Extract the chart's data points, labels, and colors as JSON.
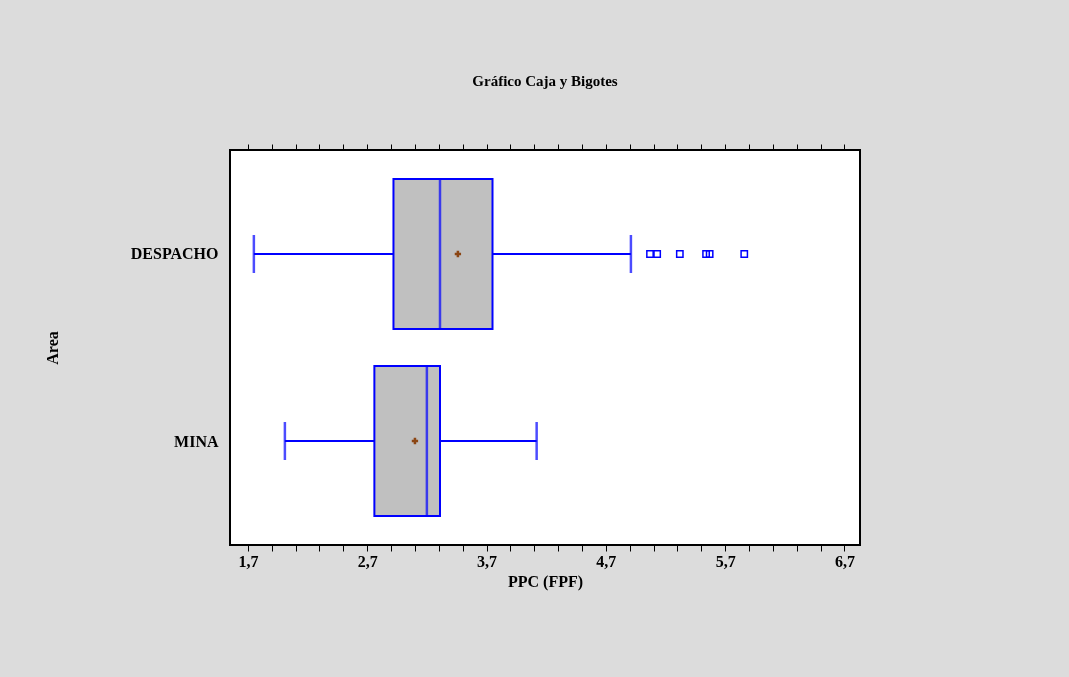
{
  "chart_data": {
    "type": "box",
    "title": "Gráfico Caja y Bigotes",
    "xlabel": "PPC (FPF)",
    "ylabel": "Area",
    "orientation": "horizontal",
    "categories": [
      "DESPACHO",
      "MINA"
    ],
    "series": [
      {
        "color": "#0000ff",
        "boxes": [
          {
            "low": 1.75,
            "q1": 2.92,
            "median": 3.31,
            "q3": 3.75,
            "high": 4.91,
            "mean": 3.46,
            "outliers": [
              5.07,
              5.13,
              5.32,
              5.54,
              5.57,
              5.86
            ]
          },
          {
            "low": 2.01,
            "q1": 2.76,
            "median": 3.2,
            "q3": 3.31,
            "high": 4.12,
            "mean": 3.1
          }
        ]
      }
    ],
    "xlim": [
      1.55,
      6.83
    ],
    "xticks": [
      {
        "value": 1.7,
        "label": "1,7"
      },
      {
        "value": 1.9,
        "label": null
      },
      {
        "value": 2.1,
        "label": null
      },
      {
        "value": 2.3,
        "label": null
      },
      {
        "value": 2.5,
        "label": null
      },
      {
        "value": 2.7,
        "label": "2,7"
      },
      {
        "value": 2.9,
        "label": null
      },
      {
        "value": 3.1,
        "label": null
      },
      {
        "value": 3.3,
        "label": null
      },
      {
        "value": 3.5,
        "label": null
      },
      {
        "value": 3.7,
        "label": "3,7"
      },
      {
        "value": 3.9,
        "label": null
      },
      {
        "value": 4.1,
        "label": null
      },
      {
        "value": 4.3,
        "label": null
      },
      {
        "value": 4.5,
        "label": null
      },
      {
        "value": 4.7,
        "label": "4,7"
      },
      {
        "value": 4.9,
        "label": null
      },
      {
        "value": 5.1,
        "label": null
      },
      {
        "value": 5.3,
        "label": null
      },
      {
        "value": 5.5,
        "label": null
      },
      {
        "value": 5.7,
        "label": "5,7"
      },
      {
        "value": 5.9,
        "label": null
      },
      {
        "value": 6.1,
        "label": null
      },
      {
        "value": 6.3,
        "label": null
      },
      {
        "value": 6.5,
        "label": null
      },
      {
        "value": 6.7,
        "label": "6,7"
      }
    ],
    "grid": false
  }
}
